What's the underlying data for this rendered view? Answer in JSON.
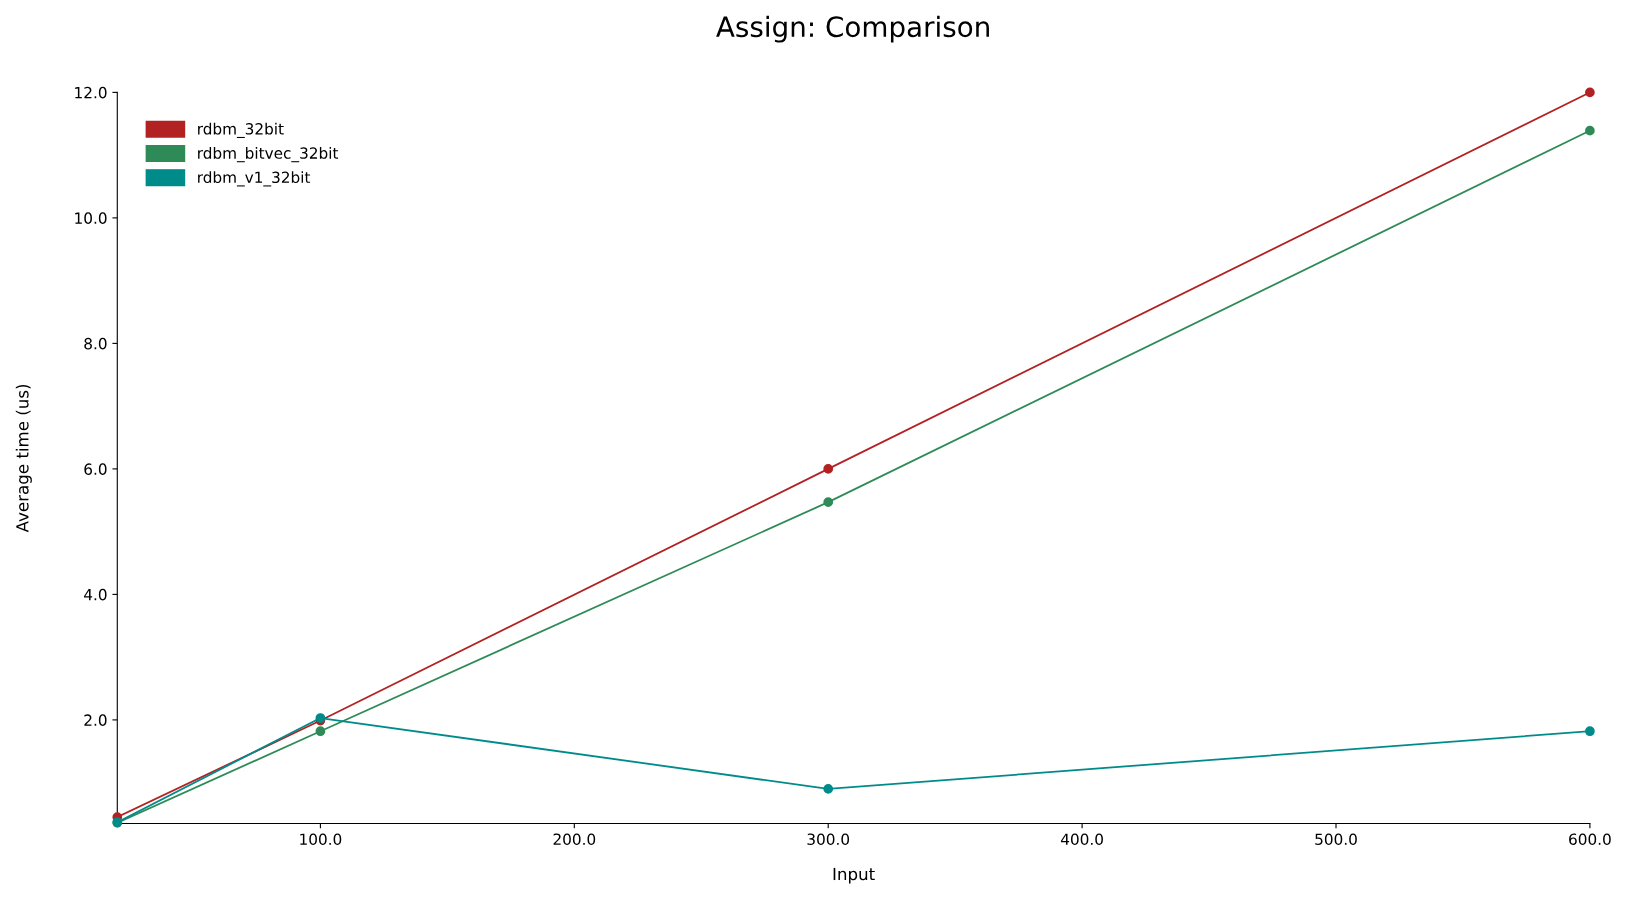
{
  "chart_data": {
    "type": "line",
    "title": "Assign: Comparison",
    "xlabel": "Input",
    "ylabel": "Average time (us)",
    "x": [
      20,
      100,
      300,
      600
    ],
    "series": [
      {
        "name": "rdbm_32bit",
        "color": "#b22222",
        "values": [
          0.45,
          1.99,
          6.0,
          12.0
        ]
      },
      {
        "name": "rdbm_bitvec_32bit",
        "color": "#2e8b57",
        "values": [
          0.36,
          1.82,
          5.47,
          11.39
        ]
      },
      {
        "name": "rdbm_v1_32bit",
        "color": "#008b8b",
        "values": [
          0.37,
          2.03,
          0.9,
          1.82
        ]
      }
    ],
    "xlim": [
      20,
      600
    ],
    "ylim": [
      0.35,
      12.0
    ],
    "xticks": [
      {
        "value": 100,
        "label": "100.0"
      },
      {
        "value": 200,
        "label": "200.0"
      },
      {
        "value": 300,
        "label": "300.0"
      },
      {
        "value": 400,
        "label": "400.0"
      },
      {
        "value": 500,
        "label": "500.0"
      },
      {
        "value": 600,
        "label": "600.0"
      }
    ],
    "yticks": [
      {
        "value": 2,
        "label": "2.0"
      },
      {
        "value": 4,
        "label": "4.0"
      },
      {
        "value": 6,
        "label": "6.0"
      },
      {
        "value": 8,
        "label": "8.0"
      },
      {
        "value": 10,
        "label": "10.0"
      },
      {
        "value": 12,
        "label": "12.0"
      }
    ],
    "marker": "circle",
    "line_style": "solid",
    "legend": "top left",
    "grid": false
  }
}
